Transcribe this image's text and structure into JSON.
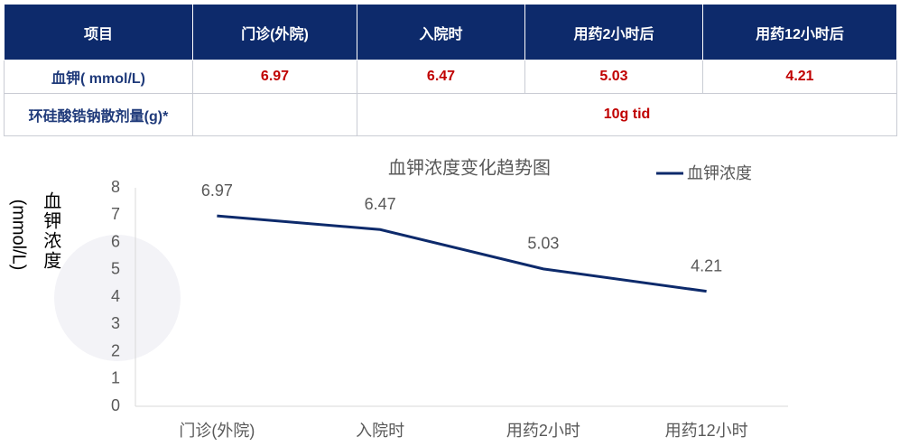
{
  "table": {
    "header": [
      "项目",
      "门诊(外院)",
      "入院时",
      "用药2小时后",
      "用药12小时后"
    ],
    "potassium_row": [
      "血钾( mmol/L)",
      "6.97",
      "6.47",
      "5.03",
      "4.21"
    ],
    "dose_row": {
      "label": "环硅酸锆钠散剂量(g)*",
      "value": "10g tid"
    }
  },
  "chart_data": {
    "type": "line",
    "title": "血钾浓度变化趋势图",
    "ylabel": "血钾浓度",
    "ylabel_unit": "(mmol/L)",
    "categories": [
      "门诊(外院)",
      "入院时",
      "用药2小时",
      "用药12小时"
    ],
    "series": [
      {
        "name": "血钾浓度",
        "color": "#0d2a6b",
        "values": [
          6.97,
          6.47,
          5.03,
          4.21
        ]
      }
    ],
    "ylim": [
      0,
      8
    ],
    "yticks": [
      0,
      1,
      2,
      3,
      4,
      5,
      6,
      7,
      8
    ],
    "grid": false,
    "legend": "top-right"
  }
}
